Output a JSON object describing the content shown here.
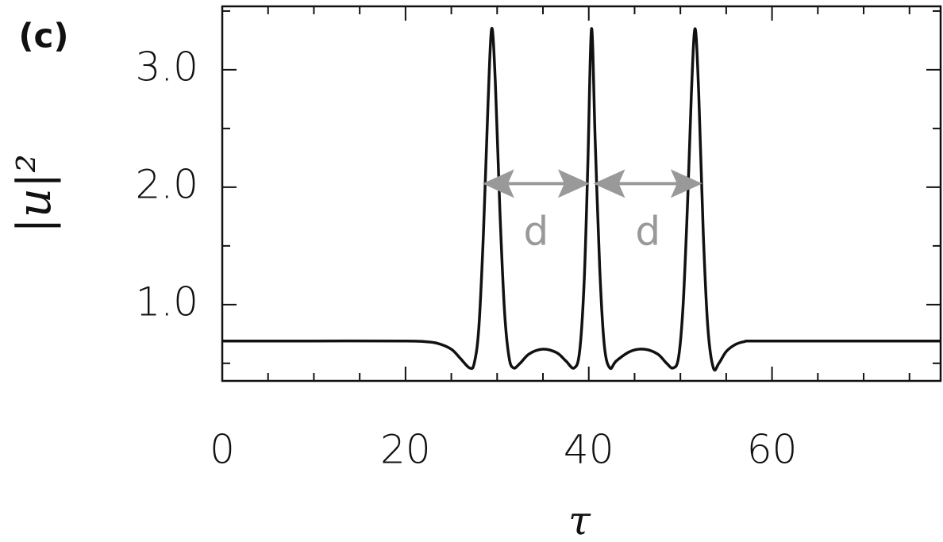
{
  "chart_data": {
    "type": "line",
    "panel_label": "(c)",
    "ylabel": "|u|²",
    "xlabel": "τ",
    "x": [
      0,
      10,
      20,
      22,
      23.5,
      25,
      26,
      27,
      27.5,
      28,
      28.5,
      29,
      29.4,
      29.8,
      30.3,
      30.8,
      31.3,
      31.8,
      32.5,
      33.5,
      35,
      36.5,
      37.5,
      38.4,
      39,
      39.5,
      39.9,
      40.3,
      40.7,
      41.2,
      41.7,
      42.3,
      43,
      44.5,
      46,
      47.5,
      48.5,
      49.2,
      49.8,
      50.3,
      50.8,
      51.2,
      51.6,
      52,
      52.5,
      53,
      53.6,
      54.2,
      55,
      56,
      57,
      58,
      65,
      78.4
    ],
    "series": [
      {
        "color": "#111111",
        "values": [
          0.69,
          0.69,
          0.69,
          0.685,
          0.67,
          0.62,
          0.54,
          0.46,
          0.5,
          0.8,
          1.6,
          2.7,
          3.35,
          2.9,
          1.8,
          0.95,
          0.55,
          0.46,
          0.5,
          0.58,
          0.62,
          0.59,
          0.52,
          0.46,
          0.6,
          1.2,
          2.2,
          3.35,
          2.4,
          1.3,
          0.65,
          0.46,
          0.52,
          0.6,
          0.62,
          0.58,
          0.5,
          0.46,
          0.55,
          1.0,
          1.9,
          2.8,
          3.35,
          2.8,
          1.6,
          0.8,
          0.46,
          0.5,
          0.6,
          0.66,
          0.685,
          0.69,
          0.69,
          0.69
        ]
      }
    ],
    "xlim": [
      0,
      78.4
    ],
    "ylim": [
      0.35,
      3.54
    ],
    "xticks": [
      0,
      20,
      40,
      60
    ],
    "yticks": [
      {
        "value": 1,
        "label": "1.0"
      },
      {
        "value": 2,
        "label": "2.0"
      },
      {
        "value": 3,
        "label": "3.0"
      }
    ],
    "xminor": [
      5,
      10,
      15,
      25,
      30,
      35,
      45,
      50,
      55,
      65,
      70,
      75
    ],
    "yminor": [
      0.5,
      1.5,
      2.5,
      3.5
    ],
    "annotations": [
      {
        "text": "d",
        "x_from": 28.4,
        "x_to": 40.1,
        "y": 2.03,
        "color": "#999999"
      },
      {
        "text": "d",
        "x_from": 40.5,
        "x_to": 52.4,
        "y": 2.03,
        "color": "#999999"
      }
    ]
  }
}
